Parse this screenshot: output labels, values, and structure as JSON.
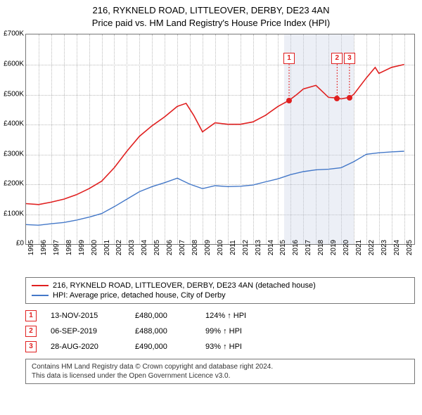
{
  "title": {
    "line1": "216, RYKNELD ROAD, LITTLEOVER, DERBY, DE23 4AN",
    "line2": "Price paid vs. HM Land Registry's House Price Index (HPI)"
  },
  "chart": {
    "type": "line",
    "background_color": "#ffffff",
    "grid_color": "#bbbbbb",
    "border_color": "#777777",
    "x": {
      "min": 1995,
      "max": 2025.8,
      "ticks": [
        1995,
        1996,
        1997,
        1998,
        1999,
        2000,
        2001,
        2002,
        2003,
        2004,
        2005,
        2006,
        2007,
        2008,
        2009,
        2010,
        2011,
        2012,
        2013,
        2014,
        2015,
        2016,
        2017,
        2018,
        2019,
        2020,
        2021,
        2022,
        2023,
        2024,
        2025
      ]
    },
    "y": {
      "min": 0,
      "max": 700000,
      "ticks": [
        0,
        100000,
        200000,
        300000,
        400000,
        500000,
        600000,
        700000
      ],
      "tick_labels": [
        "£0",
        "£100K",
        "£200K",
        "£300K",
        "£400K",
        "£500K",
        "£600K",
        "£700K"
      ]
    },
    "price_band": {
      "start": 2015.5,
      "end": 2021.0,
      "color": "rgba(200,210,230,0.35)"
    },
    "series": [
      {
        "name": "property",
        "color": "#e02020",
        "width": 1.6,
        "legend": "216, RYKNELD ROAD, LITTLEOVER, DERBY, DE23 4AN (detached house)",
        "data": [
          [
            1995,
            135000
          ],
          [
            1996,
            132000
          ],
          [
            1997,
            140000
          ],
          [
            1998,
            150000
          ],
          [
            1999,
            165000
          ],
          [
            2000,
            185000
          ],
          [
            2001,
            210000
          ],
          [
            2002,
            255000
          ],
          [
            2003,
            310000
          ],
          [
            2004,
            360000
          ],
          [
            2005,
            395000
          ],
          [
            2006,
            425000
          ],
          [
            2007,
            460000
          ],
          [
            2007.7,
            470000
          ],
          [
            2008.3,
            430000
          ],
          [
            2009,
            375000
          ],
          [
            2010,
            405000
          ],
          [
            2011,
            400000
          ],
          [
            2012,
            400000
          ],
          [
            2013,
            408000
          ],
          [
            2014,
            430000
          ],
          [
            2015,
            460000
          ],
          [
            2015.87,
            480000
          ],
          [
            2016.5,
            500000
          ],
          [
            2017,
            518000
          ],
          [
            2018,
            530000
          ],
          [
            2019,
            490000
          ],
          [
            2019.68,
            488000
          ],
          [
            2020,
            485000
          ],
          [
            2020.66,
            490000
          ],
          [
            2021,
            500000
          ],
          [
            2022,
            555000
          ],
          [
            2022.7,
            590000
          ],
          [
            2023,
            570000
          ],
          [
            2024,
            590000
          ],
          [
            2025,
            600000
          ]
        ]
      },
      {
        "name": "hpi",
        "color": "#4478c8",
        "width": 1.4,
        "legend": "HPI: Average price, detached house, City of Derby",
        "data": [
          [
            1995,
            65000
          ],
          [
            1996,
            63000
          ],
          [
            1997,
            68000
          ],
          [
            1998,
            72000
          ],
          [
            1999,
            80000
          ],
          [
            2000,
            90000
          ],
          [
            2001,
            102000
          ],
          [
            2002,
            125000
          ],
          [
            2003,
            150000
          ],
          [
            2004,
            175000
          ],
          [
            2005,
            192000
          ],
          [
            2006,
            205000
          ],
          [
            2007,
            220000
          ],
          [
            2008,
            200000
          ],
          [
            2009,
            185000
          ],
          [
            2010,
            195000
          ],
          [
            2011,
            192000
          ],
          [
            2012,
            193000
          ],
          [
            2013,
            197000
          ],
          [
            2014,
            208000
          ],
          [
            2015,
            218000
          ],
          [
            2016,
            232000
          ],
          [
            2017,
            242000
          ],
          [
            2018,
            248000
          ],
          [
            2019,
            250000
          ],
          [
            2020,
            255000
          ],
          [
            2021,
            275000
          ],
          [
            2022,
            300000
          ],
          [
            2023,
            305000
          ],
          [
            2024,
            308000
          ],
          [
            2025,
            310000
          ]
        ]
      }
    ],
    "markers": [
      {
        "id": "1",
        "x": 2015.87,
        "y": 480000
      },
      {
        "id": "2",
        "x": 2019.68,
        "y": 488000
      },
      {
        "id": "3",
        "x": 2020.66,
        "y": 490000
      }
    ],
    "marker_top_y": 620000,
    "marker_box_color": "#e02020"
  },
  "legend": {
    "items": [
      {
        "color": "#e02020",
        "label": "216, RYKNELD ROAD, LITTLEOVER, DERBY, DE23 4AN (detached house)"
      },
      {
        "color": "#4478c8",
        "label": "HPI: Average price, detached house, City of Derby"
      }
    ]
  },
  "sales": [
    {
      "num": "1",
      "date": "13-NOV-2015",
      "price": "£480,000",
      "pct": "124% ↑ HPI"
    },
    {
      "num": "2",
      "date": "06-SEP-2019",
      "price": "£488,000",
      "pct": "99% ↑ HPI"
    },
    {
      "num": "3",
      "date": "28-AUG-2020",
      "price": "£490,000",
      "pct": "93% ↑ HPI"
    }
  ],
  "footer": {
    "line1": "Contains HM Land Registry data © Crown copyright and database right 2024.",
    "line2": "This data is licensed under the Open Government Licence v3.0."
  }
}
